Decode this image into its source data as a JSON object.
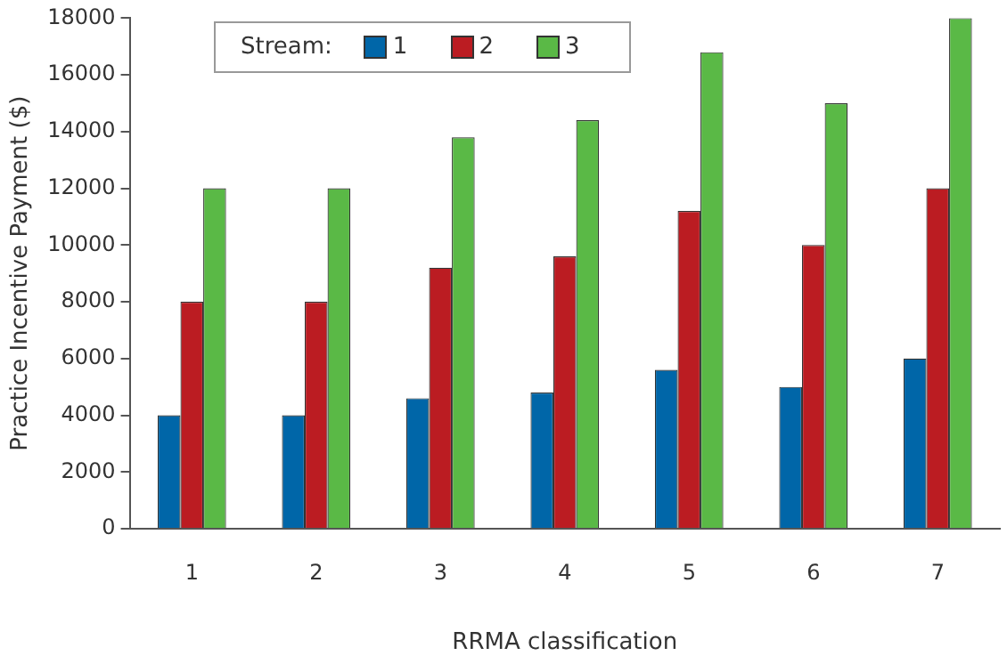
{
  "chart_data": {
    "type": "bar",
    "xlabel": "RRMA classification",
    "ylabel": "Practice Incentive Payment ($)",
    "legend_title": "Stream:",
    "legend": "top left",
    "grid": false,
    "categories": [
      "1",
      "2",
      "3",
      "4",
      "5",
      "6",
      "7"
    ],
    "ylim": [
      0,
      18000
    ],
    "yticks": [
      0,
      2000,
      4000,
      6000,
      8000,
      10000,
      12000,
      14000,
      16000,
      18000
    ],
    "series": [
      {
        "name": "1",
        "color": "#0066a8",
        "values": [
          4000,
          4000,
          4600,
          4800,
          5600,
          5000,
          6000
        ]
      },
      {
        "name": "2",
        "color": "#bb1c22",
        "values": [
          8000,
          8000,
          9200,
          9600,
          11200,
          10000,
          12000
        ]
      },
      {
        "name": "3",
        "color": "#5ab946",
        "values": [
          12000,
          12000,
          13800,
          14400,
          16800,
          15000,
          18000
        ]
      }
    ]
  }
}
